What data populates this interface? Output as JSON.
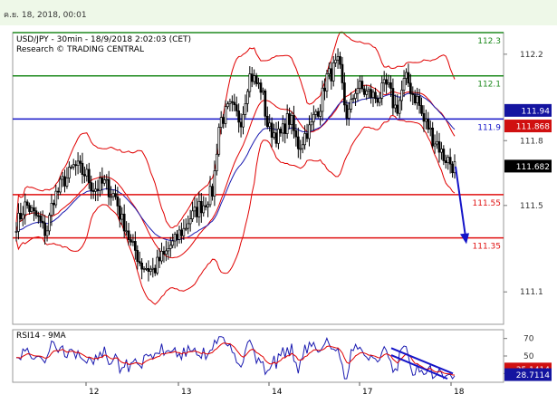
{
  "header": {
    "timestamp": "ค.ย. 18, 2018, 00:01"
  },
  "chart_data": [
    {
      "type": "candlestick",
      "title": "USD/JPY - 30min - 18/9/2018 2:02:03 (CET)",
      "subtitle": "Research © TRADING CENTRAL",
      "ylim": [
        110.95,
        112.3
      ],
      "yticks": [
        111.1,
        111.5,
        111.8,
        112.2
      ],
      "x_tick_labels": [
        "12",
        "13",
        "14",
        "17",
        "18"
      ],
      "levels": [
        {
          "label": "112.3",
          "value": 112.3,
          "color": "#1e8a1e"
        },
        {
          "label": "112.1",
          "value": 112.1,
          "color": "#1e8a1e"
        },
        {
          "label": "111.9",
          "value": 111.9,
          "color": "#1414c8"
        },
        {
          "label": "111.55",
          "value": 111.55,
          "color": "#e01010"
        },
        {
          "label": "111.35",
          "value": 111.35,
          "color": "#e01010"
        }
      ],
      "price_badges": [
        {
          "label": "111.94",
          "value": 111.94,
          "bg": "#1414a0"
        },
        {
          "label": "111.868",
          "value": 111.868,
          "bg": "#d01010"
        },
        {
          "label": "111.682",
          "value": 111.682,
          "bg": "#000000"
        }
      ],
      "close_path": [
        111.42,
        111.5,
        111.45,
        111.38,
        111.55,
        111.62,
        111.68,
        111.65,
        111.58,
        111.6,
        111.55,
        111.42,
        111.3,
        111.22,
        111.2,
        111.26,
        111.32,
        111.38,
        111.45,
        111.5,
        111.55,
        111.9,
        111.95,
        111.9,
        112.1,
        112.05,
        111.85,
        111.82,
        111.9,
        111.78,
        111.85,
        111.95,
        112.1,
        112.15,
        111.92,
        112.05,
        112.02,
        112.0,
        112.05,
        111.95,
        112.08,
        112.0,
        111.88,
        111.8,
        111.72,
        111.68
      ],
      "forecast_arrow": [
        111.68,
        111.33
      ]
    },
    {
      "type": "line",
      "title": "RSI14 - 9MA",
      "ylim": [
        20,
        80
      ],
      "yticks": [
        30,
        50,
        70
      ],
      "price_badges": [
        {
          "label": "35.1414",
          "value": 35.1414,
          "bg": "#d01010"
        },
        {
          "label": "28.7114",
          "value": 28.7114,
          "bg": "#1414a0"
        }
      ]
    }
  ]
}
